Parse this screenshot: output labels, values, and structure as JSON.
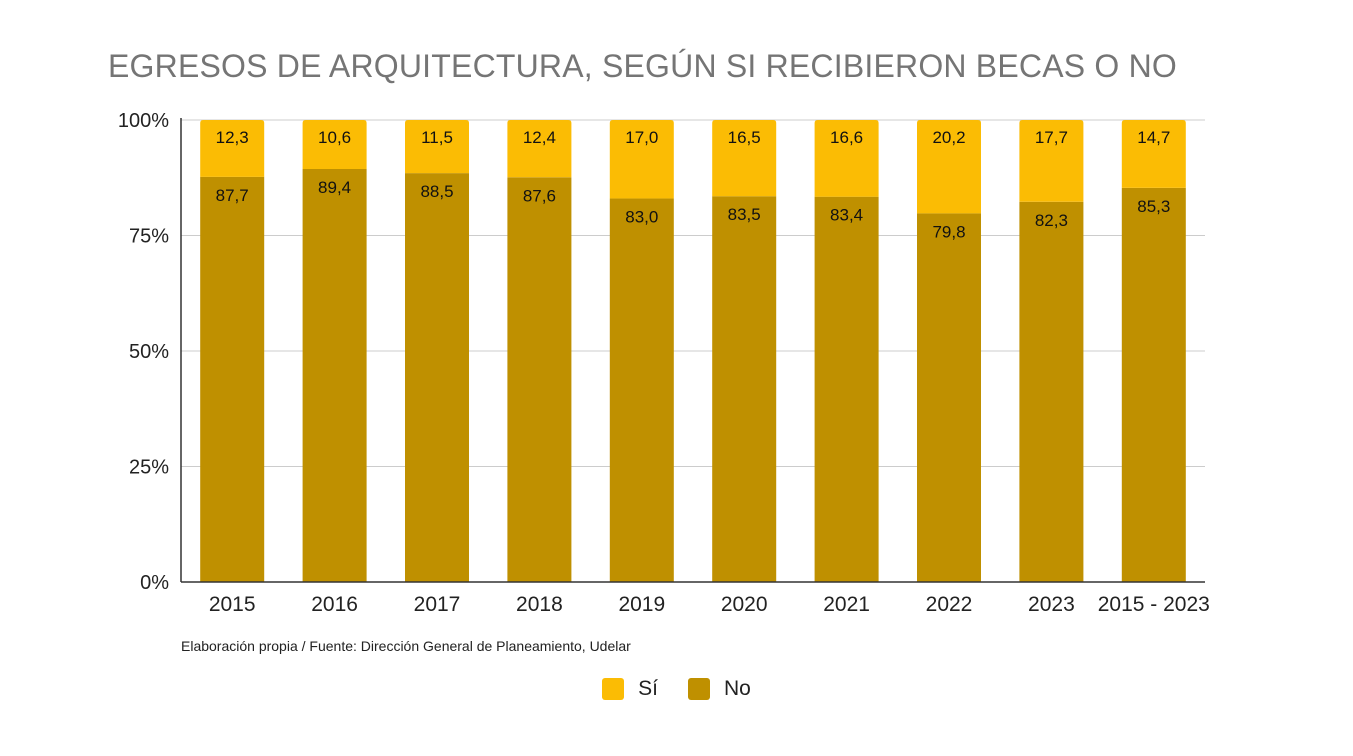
{
  "title": "EGRESOS DE ARQUITECTURA, SEGÚN SI RECIBIERON BECAS O NO",
  "source": "Elaboración propia / Fuente: Dirección General de Planeamiento, Udelar",
  "colors": {
    "si": "#FBBC04",
    "no": "#BF9000"
  },
  "chart_data": {
    "type": "bar",
    "stacked": true,
    "categories": [
      "2015",
      "2016",
      "2017",
      "2018",
      "2019",
      "2020",
      "2021",
      "2022",
      "2023",
      "2015 - 2023"
    ],
    "series": [
      {
        "name": "No",
        "values": [
          87.7,
          89.4,
          88.5,
          87.6,
          83.0,
          83.5,
          83.4,
          79.8,
          82.3,
          85.3
        ],
        "labels": [
          "87,7",
          "89,4",
          "88,5",
          "87,6",
          "83,0",
          "83,5",
          "83,4",
          "79,8",
          "82,3",
          "85,3"
        ]
      },
      {
        "name": "Sí",
        "values": [
          12.3,
          10.6,
          11.5,
          12.4,
          17.0,
          16.5,
          16.6,
          20.2,
          17.7,
          14.7
        ],
        "labels": [
          "12,3",
          "10,6",
          "11,5",
          "12,4",
          "17,0",
          "16,5",
          "16,6",
          "20,2",
          "17,7",
          "14,7"
        ]
      }
    ],
    "ylim": [
      0,
      100
    ],
    "yticks": [
      0,
      25,
      50,
      75,
      100
    ],
    "ytick_labels": [
      "0%",
      "25%",
      "50%",
      "75%",
      "100%"
    ],
    "grid": true,
    "legend": {
      "placement": "bottom",
      "entries": [
        "Sí",
        "No"
      ]
    }
  }
}
